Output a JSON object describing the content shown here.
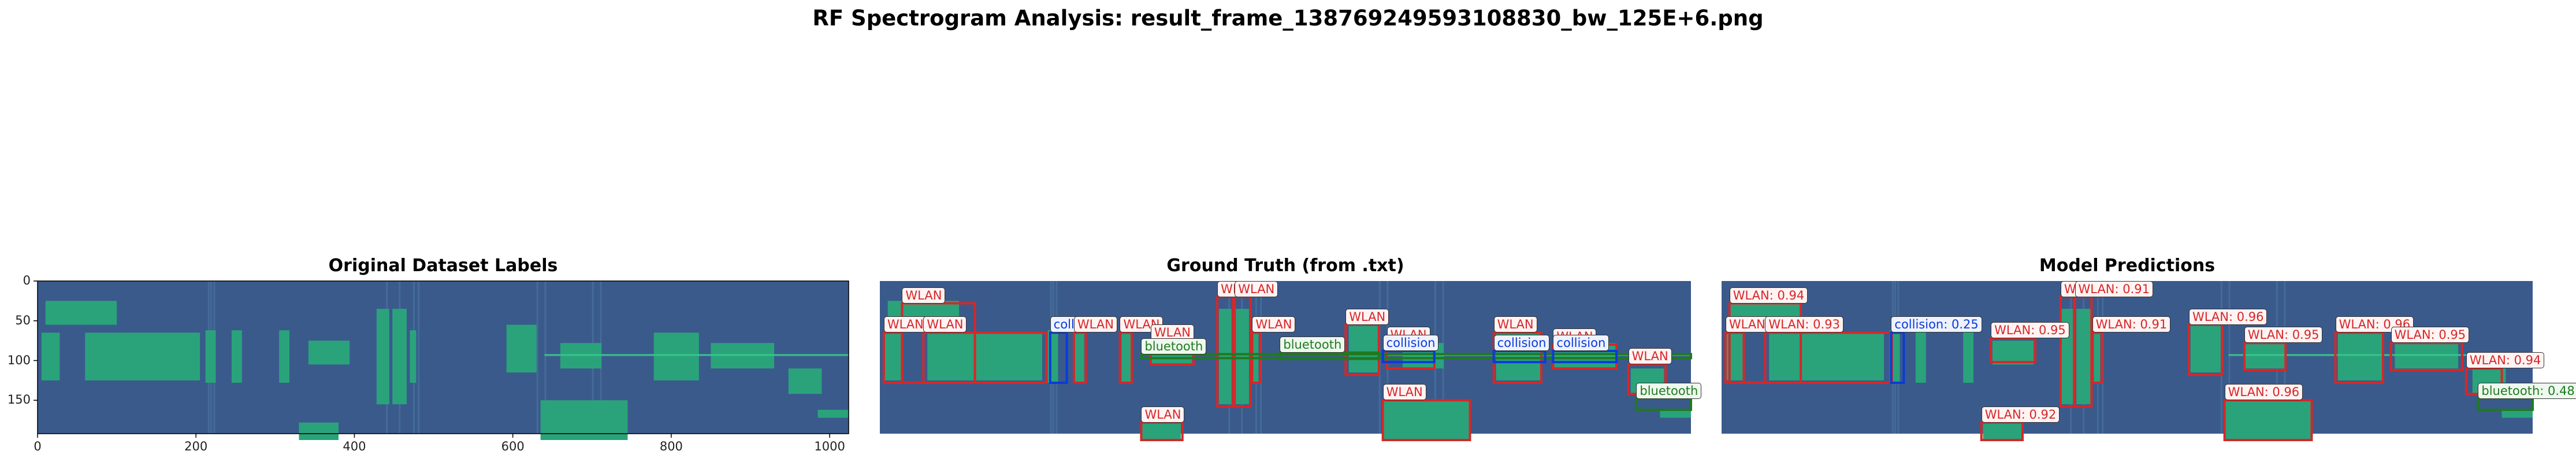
{
  "title": "RF Spectrogram Analysis: result_frame_138769249593108830_bw_125E+6.png",
  "colors": {
    "background": "#3a5a8c",
    "signal": "#2aa37b",
    "signal_bright": "#35c68a",
    "wlan": "#d62728",
    "collision": "#0b3bd8",
    "bluetooth": "#1f7a1f"
  },
  "chart_data": [
    {
      "type": "heatmap",
      "title": "Original Dataset Labels",
      "xlim": [
        0,
        1024
      ],
      "ylim": [
        192,
        0
      ],
      "xticks": [
        "0",
        "200",
        "400",
        "600",
        "800",
        "1000"
      ],
      "yticks": [
        "0",
        "50",
        "100",
        "150"
      ],
      "grid": false
    },
    {
      "type": "heatmap",
      "title": "Ground Truth (from .txt)",
      "annotations": [
        {
          "label": "WLAN",
          "x0": 28,
          "x1": 120,
          "y0": 28,
          "y1": 128
        },
        {
          "label": "WLAN",
          "x0": 5,
          "x1": 28,
          "y0": 65,
          "y1": 128
        },
        {
          "label": "WLAN",
          "x0": 55,
          "x1": 210,
          "y0": 65,
          "y1": 128
        },
        {
          "label": "collision",
          "x0": 215,
          "x1": 236,
          "y0": 65,
          "y1": 128
        },
        {
          "label": "WLAN",
          "x0": 245,
          "x1": 260,
          "y0": 65,
          "y1": 128
        },
        {
          "label": "WLAN",
          "x0": 303,
          "x1": 318,
          "y0": 65,
          "y1": 128
        },
        {
          "label": "WLAN",
          "x0": 342,
          "x1": 396,
          "y0": 75,
          "y1": 105
        },
        {
          "label": "WLAN",
          "x0": 426,
          "x1": 446,
          "y0": 20,
          "y1": 158
        },
        {
          "label": "WLAN",
          "x0": 448,
          "x1": 468,
          "y0": 20,
          "y1": 158
        },
        {
          "label": "WLAN",
          "x0": 470,
          "x1": 480,
          "y0": 65,
          "y1": 128
        },
        {
          "label": "WLAN",
          "x0": 588,
          "x1": 630,
          "y0": 55,
          "y1": 118
        },
        {
          "label": "WLAN",
          "x0": 640,
          "x1": 700,
          "y0": 78,
          "y1": 110
        },
        {
          "label": "WLAN",
          "x0": 775,
          "x1": 835,
          "y0": 65,
          "y1": 128
        },
        {
          "label": "WLAN",
          "x0": 850,
          "x1": 930,
          "y0": 80,
          "y1": 110
        },
        {
          "label": "WLAN",
          "x0": 945,
          "x1": 992,
          "y0": 105,
          "y1": 142
        },
        {
          "label": "WLAN",
          "x0": 330,
          "x1": 382,
          "y0": 178,
          "y1": 200
        },
        {
          "label": "WLAN",
          "x0": 635,
          "x1": 745,
          "y0": 150,
          "y1": 200
        },
        {
          "label": "bluetooth",
          "x0": 330,
          "x1": 1024,
          "y0": 92,
          "y1": 97
        },
        {
          "label": "bluetooth",
          "x0": 505,
          "x1": 630,
          "y0": 90,
          "y1": 98
        },
        {
          "label": "collision",
          "x0": 635,
          "x1": 700,
          "y0": 88,
          "y1": 102
        },
        {
          "label": "collision",
          "x0": 775,
          "x1": 840,
          "y0": 88,
          "y1": 102
        },
        {
          "label": "collision",
          "x0": 850,
          "x1": 930,
          "y0": 88,
          "y1": 102
        },
        {
          "label": "bluetooth",
          "x0": 955,
          "x1": 1024,
          "y0": 148,
          "y1": 162
        }
      ]
    },
    {
      "type": "heatmap",
      "title": "Model Predictions",
      "annotations": [
        {
          "label": "WLAN: 0.94",
          "x0": 10,
          "x1": 100,
          "y0": 28,
          "y1": 128
        },
        {
          "label": "WLAN",
          "x0": 5,
          "x1": 28,
          "y0": 65,
          "y1": 128
        },
        {
          "label": "WLAN: 0.93",
          "x0": 55,
          "x1": 215,
          "y0": 65,
          "y1": 128
        },
        {
          "label": "collision: 0.25",
          "x0": 214,
          "x1": 230,
          "y0": 65,
          "y1": 128
        },
        {
          "label": "WLAN: 0.95",
          "x0": 340,
          "x1": 396,
          "y0": 72,
          "y1": 102
        },
        {
          "label": "WLAN: 0.92",
          "x0": 328,
          "x1": 380,
          "y0": 178,
          "y1": 200
        },
        {
          "label": "WLAN: 0.91",
          "x0": 428,
          "x1": 445,
          "y0": 20,
          "y1": 158
        },
        {
          "label": "WLAN: 0.91",
          "x0": 446,
          "x1": 467,
          "y0": 20,
          "y1": 158
        },
        {
          "label": "WLAN: 0.91",
          "x0": 468,
          "x1": 480,
          "y0": 65,
          "y1": 128
        },
        {
          "label": "WLAN: 0.96",
          "x0": 590,
          "x1": 632,
          "y0": 55,
          "y1": 118
        },
        {
          "label": "WLAN: 0.95",
          "x0": 660,
          "x1": 712,
          "y0": 78,
          "y1": 112
        },
        {
          "label": "WLAN: 0.96",
          "x0": 775,
          "x1": 835,
          "y0": 65,
          "y1": 128
        },
        {
          "label": "WLAN: 0.95",
          "x0": 845,
          "x1": 935,
          "y0": 78,
          "y1": 112
        },
        {
          "label": "WLAN: 0.94",
          "x0": 940,
          "x1": 985,
          "y0": 110,
          "y1": 142
        },
        {
          "label": "WLAN: 0.96",
          "x0": 635,
          "x1": 745,
          "y0": 150,
          "y1": 200
        },
        {
          "label": "bluetooth: 0.48",
          "x0": 955,
          "x1": 1024,
          "y0": 148,
          "y1": 162
        }
      ]
    }
  ]
}
